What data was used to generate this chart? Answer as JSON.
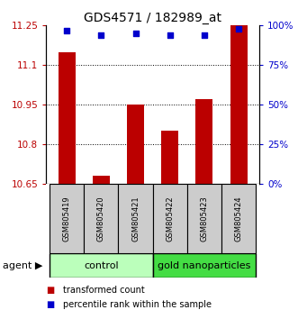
{
  "title": "GDS4571 / 182989_at",
  "categories": [
    "GSM805419",
    "GSM805420",
    "GSM805421",
    "GSM805422",
    "GSM805423",
    "GSM805424"
  ],
  "red_values": [
    11.15,
    10.68,
    10.95,
    10.85,
    10.97,
    11.25
  ],
  "blue_values": [
    97,
    94,
    95,
    94,
    94,
    98
  ],
  "ylim_left": [
    10.65,
    11.25
  ],
  "ylim_right": [
    0,
    100
  ],
  "yticks_left": [
    10.65,
    10.8,
    10.95,
    11.1,
    11.25
  ],
  "yticks_right": [
    0,
    25,
    50,
    75,
    100
  ],
  "ytick_labels_right": [
    "0%",
    "25%",
    "50%",
    "75%",
    "100%"
  ],
  "red_color": "#bb0000",
  "blue_color": "#0000cc",
  "bar_width": 0.5,
  "group1_label": "control",
  "group2_label": "gold nanoparticles",
  "group1_color": "#bbffbb",
  "group2_color": "#44dd44",
  "sample_box_color": "#cccccc",
  "agent_label": "agent",
  "legend_red": "transformed count",
  "legend_blue": "percentile rank within the sample",
  "title_fontsize": 10,
  "tick_fontsize": 7.5,
  "label_fontsize": 7.5,
  "agent_fontsize": 8,
  "group_fontsize": 8,
  "legend_fontsize": 7
}
